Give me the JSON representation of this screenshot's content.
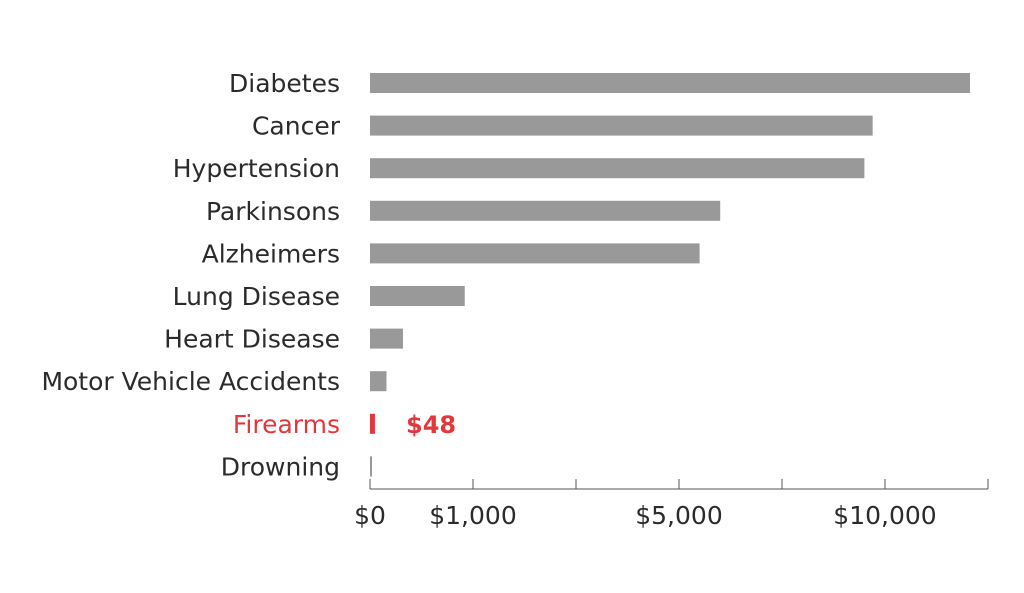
{
  "chart_data": {
    "type": "bar",
    "orientation": "horizontal",
    "title": "",
    "xlabel": "",
    "ylabel": "",
    "categories": [
      "Diabetes",
      "Cancer",
      "Hypertension",
      "Parkinsons",
      "Alzheimers",
      "Lung Disease",
      "Heart Disease",
      "Motor Vehicle Accidents",
      "Firearms",
      "Drowning"
    ],
    "values": [
      12000,
      9700,
      9500,
      6000,
      5500,
      920,
      320,
      160,
      48,
      10
    ],
    "highlight": {
      "category": "Firearms",
      "color": "#e2383c",
      "label": "$48"
    },
    "bar_color": "#999999",
    "axis": {
      "ticks": [
        {
          "label": "$0",
          "value": 0
        },
        {
          "label": "$1,000",
          "value": 1000
        },
        {
          "label": "$5,000",
          "value": 5000
        },
        {
          "label": "$10,000",
          "value": 10000
        }
      ],
      "scale_breakpoints": [
        0,
        1000,
        3000,
        5000,
        7500,
        10000,
        12000
      ],
      "grid": false,
      "note": "piecewise axis: $0–$1,000 expanded relative to the rest"
    }
  }
}
